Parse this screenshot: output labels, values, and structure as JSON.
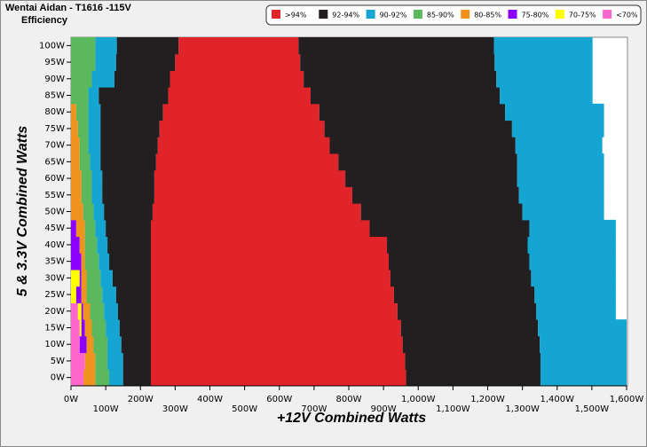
{
  "chart_data": {
    "type": "stacked-hbar",
    "title": "Wentai Aidan - T1616 -115V",
    "subtitle": "Efficiency",
    "x_label": "+12V Combined Watts",
    "y_label": "5 & 3.3V Combined Watts",
    "categories": [
      "0W",
      "5W",
      "10W",
      "15W",
      "20W",
      "25W",
      "30W",
      "35W",
      "40W",
      "45W",
      "50W",
      "55W",
      "60W",
      "65W",
      "70W",
      "75W",
      "80W",
      "85W",
      "90W",
      "95W",
      "100W"
    ],
    "legend": [
      {
        "name": ">94%",
        "color": "#e0242a"
      },
      {
        "name": "92-94%",
        "color": "#231f20"
      },
      {
        "name": "90-92%",
        "color": "#14a5d2"
      },
      {
        "name": "85-90%",
        "color": "#5cb85c"
      },
      {
        "name": "80-85%",
        "color": "#f0921e"
      },
      {
        "name": "75-80%",
        "color": "#8b00ff"
      },
      {
        "name": "70-75%",
        "color": "#ffff00"
      },
      {
        "name": "<70%",
        "color": "#ff66cc"
      }
    ],
    "series": [
      {
        "class": 7,
        "values": [
          36,
          40,
          25,
          25,
          20,
          0,
          0,
          0,
          0,
          0,
          0,
          0,
          0,
          0,
          0,
          0,
          0,
          0,
          0,
          0,
          0
        ]
      },
      {
        "class": 6,
        "values": [
          0,
          0,
          0,
          5,
          10,
          15,
          25,
          0,
          0,
          0,
          0,
          0,
          0,
          0,
          0,
          0,
          0,
          0,
          0,
          0,
          0
        ]
      },
      {
        "class": 5,
        "values": [
          0,
          0,
          20,
          10,
          5,
          15,
          5,
          30,
          25,
          15,
          0,
          0,
          0,
          0,
          0,
          0,
          0,
          0,
          0,
          0,
          0
        ]
      },
      {
        "class": 4,
        "values": [
          34,
          30,
          20,
          20,
          20,
          15,
          15,
          10,
          15,
          25,
          35,
          30,
          30,
          25,
          25,
          20,
          15,
          0,
          0,
          0,
          0
        ]
      },
      {
        "class": 3,
        "values": [
          40,
          35,
          40,
          40,
          40,
          45,
          40,
          40,
          35,
          30,
          30,
          30,
          30,
          30,
          25,
          30,
          35,
          50,
          60,
          70,
          70
        ]
      },
      {
        "class": 2,
        "values": [
          40,
          45,
          40,
          40,
          40,
          40,
          35,
          30,
          30,
          30,
          30,
          30,
          30,
          30,
          35,
          35,
          35,
          30,
          65,
          60,
          62
        ]
      },
      {
        "class": 1,
        "values": [
          80,
          80,
          85,
          90,
          95,
          100,
          110,
          120,
          125,
          130,
          140,
          150,
          150,
          160,
          165,
          170,
          180,
          200,
          160,
          170,
          178
        ]
      },
      {
        "class": 0,
        "values": [
          735,
          732,
          725,
          720,
          710,
          700,
          690,
          685,
          680,
          630,
          600,
          570,
          550,
          525,
          495,
          475,
          450,
          410,
          385,
          360,
          345
        ]
      },
      {
        "class": 1,
        "values": [
          387,
          390,
          395,
          395,
          400,
          405,
          405,
          405,
          405,
          460,
          465,
          480,
          495,
          515,
          535,
          540,
          535,
          545,
          555,
          560,
          563
        ]
      },
      {
        "class": 2,
        "values": [
          248,
          248,
          250,
          255,
          229,
          234,
          244,
          249,
          254,
          249,
          235,
          245,
          250,
          250,
          250,
          265,
          285,
          267,
          277,
          282,
          284
        ]
      }
    ],
    "xlim": [
      0,
      1600
    ],
    "xticks": [
      {
        "value": 0,
        "label": "0W"
      },
      {
        "value": 100,
        "label": "100W"
      },
      {
        "value": 200,
        "label": "200W"
      },
      {
        "value": 300,
        "label": "300W"
      },
      {
        "value": 400,
        "label": "400W"
      },
      {
        "value": 500,
        "label": "500W"
      },
      {
        "value": 600,
        "label": "600W"
      },
      {
        "value": 700,
        "label": "700W"
      },
      {
        "value": 800,
        "label": "800W"
      },
      {
        "value": 900,
        "label": "900W"
      },
      {
        "value": 1000,
        "label": "1,000W"
      },
      {
        "value": 1100,
        "label": "1,100W"
      },
      {
        "value": 1200,
        "label": "1,200W"
      },
      {
        "value": 1300,
        "label": "1,300W"
      },
      {
        "value": 1400,
        "label": "1,400W"
      },
      {
        "value": 1500,
        "label": "1,500W"
      },
      {
        "value": 1600,
        "label": "1,600W"
      }
    ]
  }
}
